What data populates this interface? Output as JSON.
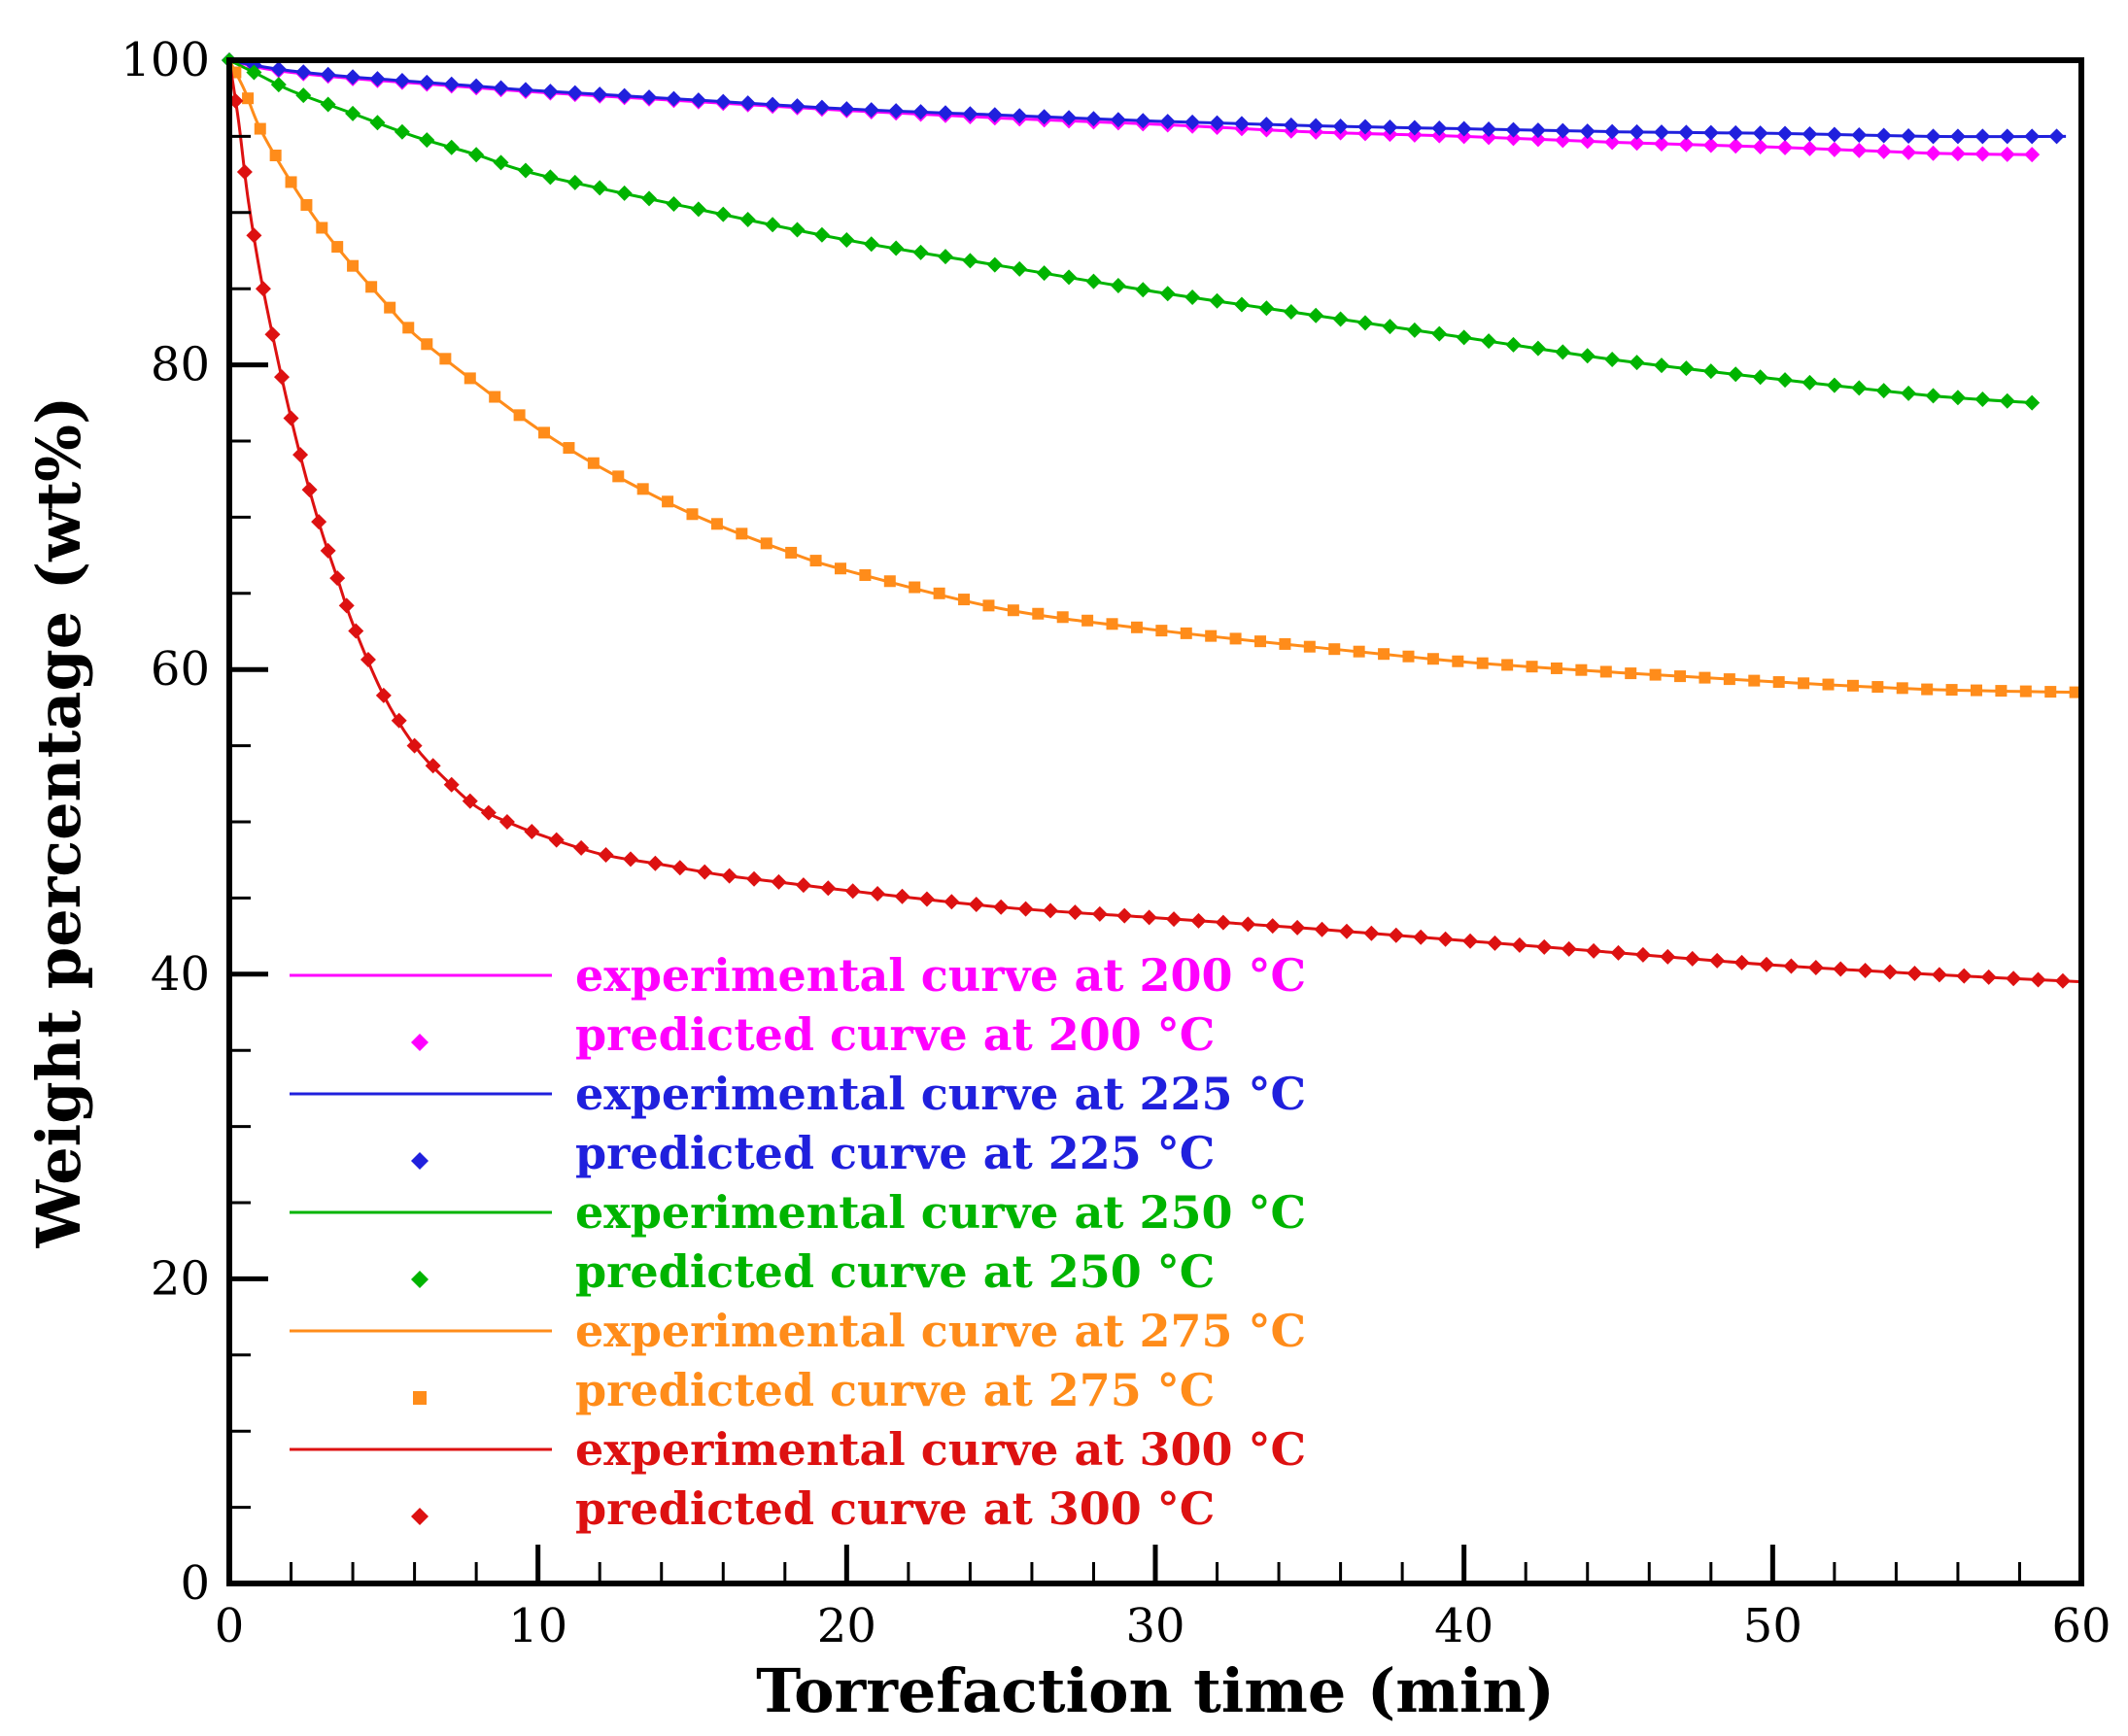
{
  "chart_data": {
    "type": "line",
    "xlabel": "Torrefaction time (min)",
    "ylabel": "Weight percentage (wt%)",
    "xlim": [
      0,
      60
    ],
    "ylim": [
      0,
      100
    ],
    "xticks": [
      0,
      10,
      20,
      30,
      40,
      50,
      60
    ],
    "yticks": [
      0,
      20,
      40,
      60,
      80,
      100
    ],
    "x_minor_step": 2,
    "y_minor_step": 5,
    "grid": false,
    "legend_position": "lower-left",
    "x_end": 58.5,
    "series": [
      {
        "temperature": "200",
        "color": "#ff00ff",
        "marker": "diamond",
        "experimental_label": "experimental curve at 200 °C",
        "predicted_label": "predicted curve at 200 °C",
        "x": [
          0,
          1,
          2,
          4,
          6,
          8,
          10,
          15,
          20,
          25,
          30,
          35,
          40,
          45,
          50,
          55,
          58.5
        ],
        "y": [
          100,
          99.5,
          99.2,
          98.8,
          98.5,
          98.2,
          97.9,
          97.3,
          96.7,
          96.2,
          95.8,
          95.3,
          95.0,
          94.6,
          94.3,
          93.9,
          93.8
        ]
      },
      {
        "temperature": "225",
        "color": "#2020dd",
        "marker": "diamond",
        "experimental_label": "experimental curve at 225 °C",
        "predicted_label": "predicted curve at 225 °C",
        "x": [
          0,
          1,
          2,
          4,
          6,
          8,
          10,
          15,
          20,
          25,
          30,
          35,
          40,
          45,
          50,
          55,
          59.5
        ],
        "y": [
          100,
          99.6,
          99.3,
          98.9,
          98.6,
          98.3,
          98.0,
          97.4,
          96.8,
          96.4,
          96.0,
          95.7,
          95.5,
          95.3,
          95.2,
          95.0,
          95.0
        ]
      },
      {
        "temperature": "250",
        "color": "#00b400",
        "marker": "diamond",
        "experimental_label": "experimental curve at 250 °C",
        "predicted_label": "predicted curve at 250 °C",
        "x": [
          0,
          1,
          2,
          4,
          6,
          8,
          10,
          15,
          20,
          25,
          30,
          35,
          40,
          45,
          50,
          55,
          58.5
        ],
        "y": [
          100,
          99.0,
          98.0,
          96.5,
          95.0,
          93.8,
          92.5,
          90.3,
          88.2,
          86.5,
          84.8,
          83.3,
          81.8,
          80.3,
          79.1,
          78.0,
          77.5
        ]
      },
      {
        "temperature": "275",
        "color": "#ff8c1a",
        "marker": "square",
        "experimental_label": "experimental curve at 275 °C",
        "predicted_label": "predicted curve at 275 °C",
        "x": [
          0,
          0.5,
          1,
          2,
          3,
          4,
          5,
          6,
          8,
          10,
          12,
          15,
          18,
          20,
          25,
          30,
          35,
          40,
          45,
          50,
          55,
          60
        ],
        "y": [
          100,
          98.0,
          95.5,
          92.0,
          89.0,
          86.5,
          84.2,
          82.0,
          78.8,
          75.8,
          73.3,
          70.2,
          67.8,
          66.5,
          64.0,
          62.6,
          61.5,
          60.5,
          59.8,
          59.2,
          58.7,
          58.5
        ]
      },
      {
        "temperature": "300",
        "color": "#dd1111",
        "marker": "diamond",
        "experimental_label": "experimental curve at 300 °C",
        "predicted_label": "predicted curve at 300 °C",
        "x": [
          0,
          0.3,
          0.6,
          1,
          1.5,
          2,
          2.5,
          3,
          3.5,
          4,
          5,
          6,
          7,
          8,
          9,
          10,
          12,
          14,
          16,
          18,
          20,
          25,
          30,
          35,
          40,
          45,
          50,
          55,
          60
        ],
        "y": [
          100,
          96.0,
          91.0,
          86.0,
          81.0,
          76.5,
          72.5,
          69.0,
          66.0,
          63.0,
          58.3,
          55.0,
          52.8,
          51.0,
          50.0,
          49.2,
          47.9,
          47.2,
          46.5,
          46.0,
          45.5,
          44.4,
          43.7,
          43.0,
          42.2,
          41.4,
          40.6,
          40.0,
          39.5
        ]
      }
    ]
  }
}
